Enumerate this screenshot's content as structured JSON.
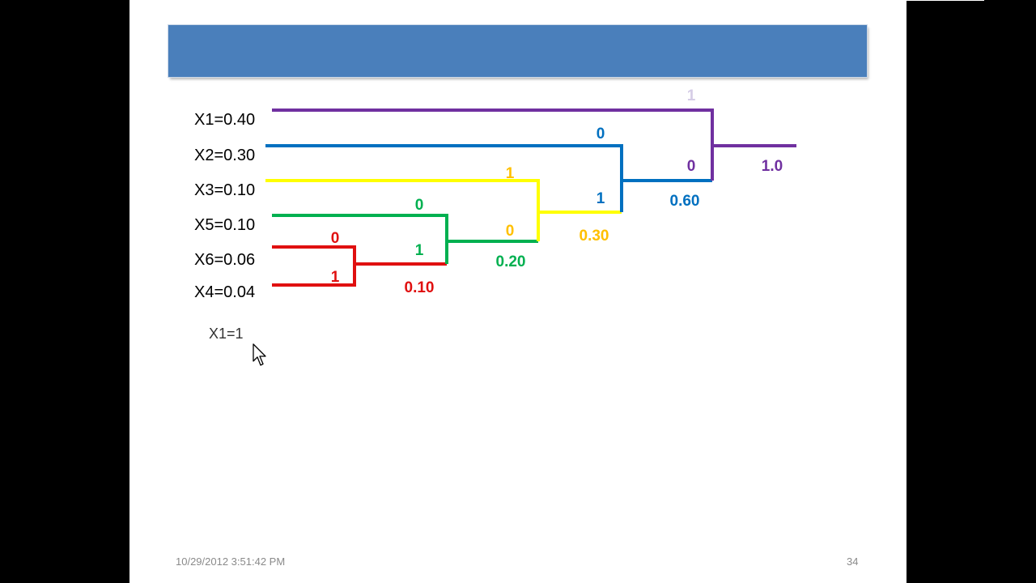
{
  "slide": {
    "symbols": [
      {
        "label": "X1=0.40"
      },
      {
        "label": "X2=0.30"
      },
      {
        "label": "X3=0.10"
      },
      {
        "label": "X5=0.10"
      },
      {
        "label": "X6=0.06"
      },
      {
        "label": "X4=0.04"
      }
    ],
    "annotation": "X1=1",
    "footer": {
      "date": "10/29/2012 3:51:42 PM",
      "page": "34"
    }
  },
  "tree": {
    "colors": {
      "purple": "#7030a0",
      "blue": "#0070c0",
      "yellow": "#ffff00",
      "yellow_text": "#ffc000",
      "green": "#00b050",
      "red": "#e01010",
      "faded": "#d5cce6",
      "title_bar": "#4a7fbb"
    },
    "merges": [
      {
        "step": 1,
        "inputs": [
          "X6",
          "X4"
        ],
        "sum": "0.10",
        "bit_top": "0",
        "bit_bottom": "1"
      },
      {
        "step": 2,
        "inputs": [
          "X5",
          "0.10"
        ],
        "sum": "0.20",
        "bit_top": "0",
        "bit_bottom": "1"
      },
      {
        "step": 3,
        "inputs": [
          "X3",
          "0.20"
        ],
        "sum": "0.30",
        "bit_top": "1",
        "bit_bottom": "0"
      },
      {
        "step": 4,
        "inputs": [
          "X2",
          "0.30"
        ],
        "sum": "0.60",
        "bit_top": "0",
        "bit_bottom": "1"
      },
      {
        "step": 5,
        "inputs": [
          "X1",
          "0.60"
        ],
        "sum": "1.0",
        "bit_top": "1",
        "bit_bottom": "0"
      }
    ]
  }
}
